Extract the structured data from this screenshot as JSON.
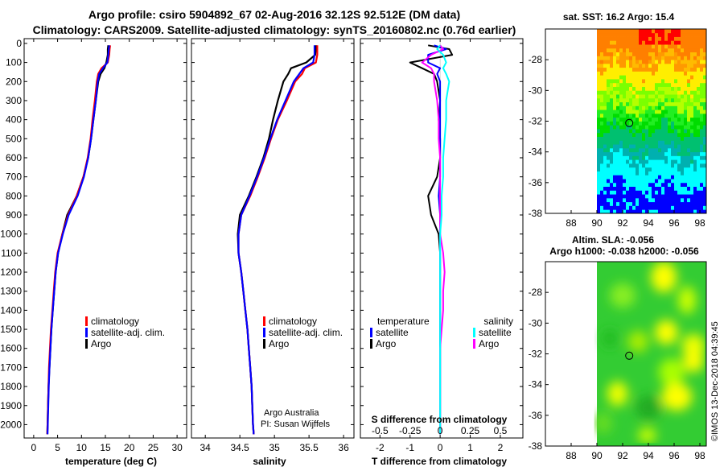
{
  "title_line1": "Argo profile: csiro 5904892_67 02-Aug-2016 32.12S 92.512E (DM data)",
  "title_line2": "Climatology: CARS2009. Satellite-adjusted climatology: synTS_20160802.nc (0.76d earlier)",
  "chart_data": [
    {
      "type": "line",
      "panel": "temperature",
      "xlabel": "temperature (deg C)",
      "ylabel": "",
      "xlim": [
        -2,
        32
      ],
      "ylim": [
        2070,
        -25
      ],
      "x_ticks": [
        0,
        5,
        10,
        15,
        20,
        25,
        30
      ],
      "y_ticks": [
        0,
        100,
        200,
        300,
        400,
        500,
        600,
        700,
        800,
        900,
        1000,
        1100,
        1200,
        1300,
        1400,
        1500,
        1600,
        1700,
        1800,
        1900,
        2000
      ],
      "depth": [
        10,
        30,
        60,
        100,
        130,
        160,
        200,
        300,
        400,
        500,
        600,
        700,
        800,
        900,
        1000,
        1100,
        1200,
        1300,
        1400,
        1500,
        1600,
        1700,
        1800,
        1900,
        2000,
        2050
      ],
      "series": [
        {
          "name": "climatology",
          "color": "#ff0000",
          "values": [
            16.0,
            15.9,
            15.8,
            15.5,
            14.2,
            13.5,
            13.2,
            12.8,
            12.3,
            11.9,
            11.3,
            10.4,
            9.0,
            7.2,
            6.0,
            5.0,
            4.5,
            4.2,
            3.9,
            3.6,
            3.4,
            3.2,
            3.1,
            3.0,
            2.9,
            2.85
          ]
        },
        {
          "name": "satellite-adj. clim.",
          "color": "#0000ff",
          "values": [
            15.8,
            15.7,
            15.6,
            15.4,
            14.5,
            13.7,
            13.4,
            13.0,
            12.5,
            12.0,
            11.4,
            10.5,
            9.2,
            7.3,
            6.1,
            5.1,
            4.6,
            4.3,
            4.0,
            3.7,
            3.5,
            3.3,
            3.15,
            3.05,
            2.95,
            2.9
          ]
        },
        {
          "name": "Argo",
          "color": "#000000",
          "values": [
            15.6,
            15.5,
            15.5,
            15.2,
            14.8,
            14.0,
            13.5,
            13.0,
            12.5,
            12.0,
            11.4,
            10.4,
            9.0,
            7.0,
            6.0,
            5.1,
            4.6,
            4.3,
            4.0,
            3.7,
            3.5,
            3.3,
            3.1,
            3.0,
            2.9,
            2.85
          ]
        }
      ]
    },
    {
      "type": "line",
      "panel": "salinity",
      "xlabel": "salinity",
      "xlim": [
        33.8,
        36.15
      ],
      "ylim": [
        2070,
        -25
      ],
      "x_ticks": [
        34,
        34.5,
        35,
        35.5,
        36
      ],
      "series": [
        {
          "name": "climatology",
          "color": "#ff0000",
          "values": [
            35.62,
            35.62,
            35.62,
            35.6,
            35.44,
            35.4,
            35.3,
            35.18,
            35.05,
            34.95,
            34.86,
            34.76,
            34.65,
            34.52,
            34.48,
            34.48,
            34.52,
            34.55,
            34.58,
            34.61,
            34.63,
            34.65,
            34.67,
            34.68,
            34.69,
            34.7
          ]
        },
        {
          "name": "satellite-adj. clim.",
          "color": "#0000ff",
          "values": [
            35.58,
            35.58,
            35.58,
            35.56,
            35.42,
            35.36,
            35.28,
            35.16,
            35.04,
            34.94,
            34.85,
            34.75,
            34.64,
            34.52,
            34.48,
            34.48,
            34.52,
            34.55,
            34.58,
            34.61,
            34.63,
            34.65,
            34.67,
            34.68,
            34.69,
            34.7
          ]
        },
        {
          "name": "Argo",
          "color": "#000000",
          "values": [
            35.6,
            35.6,
            35.59,
            35.46,
            35.24,
            35.2,
            35.13,
            35.05,
            34.98,
            34.92,
            34.84,
            34.74,
            34.63,
            34.5,
            34.47,
            34.48,
            34.52,
            34.55,
            34.58,
            34.61,
            34.63,
            34.65,
            34.67,
            34.68,
            34.69,
            34.7
          ]
        }
      ],
      "notes": [
        "Argo Australia",
        "PI: Susan Wijffels"
      ]
    },
    {
      "type": "line",
      "panel": "difference",
      "xlabel": "T difference from climatology",
      "xlabel_top": "S difference from climatology",
      "xlim": [
        -2.65,
        2.75
      ],
      "ylim": [
        2070,
        -25
      ],
      "x_ticks": [
        -2,
        -1,
        0,
        1,
        2
      ],
      "top_ticks": [
        "-0.5",
        "-0.25",
        "0",
        "0.25",
        "0.5"
      ],
      "top_ticks_t_units": [
        -2.0,
        -1.0,
        0.0,
        1.0,
        2.0
      ],
      "legend_temperature": "temperature",
      "legend_salinity": "salinity",
      "series": [
        {
          "name": "satellite",
          "group": "temperature",
          "color": "#0000ff",
          "values": [
            -0.2,
            0.2,
            -0.4,
            -0.4,
            0.0,
            -0.1,
            0.0,
            0.0,
            0.0,
            0.0,
            0.0,
            0.0,
            -0.05,
            0.0,
            0.0,
            0.0,
            0.0,
            0.0,
            0.0,
            0.0,
            0.0,
            0.0,
            0.0,
            0.0,
            0.0,
            0.0
          ]
        },
        {
          "name": "Argo",
          "group": "temperature",
          "color": "#000000",
          "values": [
            -0.4,
            0.3,
            0.4,
            -1.0,
            -0.6,
            -0.2,
            -0.1,
            0.0,
            -0.05,
            0.0,
            0.0,
            -0.1,
            -0.4,
            -0.3,
            -0.05,
            0.0,
            0.0,
            0.0,
            0.0,
            0.0,
            0.0,
            0.0,
            0.0,
            0.0,
            0.0,
            0.0
          ]
        },
        {
          "name": "satellite",
          "group": "salinity",
          "color": "#00ffff",
          "values": [
            0.0,
            -0.1,
            0.1,
            0.2,
            0.1,
            0.2,
            0.3,
            0.2,
            0.2,
            0.15,
            0.1,
            0.1,
            0.05,
            0.05,
            0.0,
            0.0,
            0.0,
            0.0,
            0.0,
            0.0,
            0.0,
            0.0,
            0.0,
            0.0,
            0.0,
            0.0
          ]
        },
        {
          "name": "Argo",
          "group": "salinity",
          "color": "#ff00ff",
          "values": [
            0.0,
            0.1,
            -0.3,
            -0.6,
            -0.3,
            -0.2,
            -0.2,
            -0.1,
            -0.05,
            -0.05,
            0.0,
            0.0,
            0.0,
            0.0,
            0.0,
            0.1,
            0.15,
            0.1,
            0.1,
            0.05,
            0.0,
            0.0,
            0.0,
            0.0,
            0.0,
            0.0
          ]
        }
      ]
    },
    {
      "type": "heatmap",
      "panel": "sst_map",
      "title": "sat. SST: 16.2 Argo: 15.4",
      "xlim": [
        86,
        98.5
      ],
      "ylim": [
        -38,
        -26
      ],
      "x_ticks": [
        88,
        90,
        92,
        94,
        96,
        98
      ],
      "y_ticks": [
        -28,
        -30,
        -32,
        -34,
        -36,
        -38
      ],
      "argo_position": [
        92.512,
        -32.12
      ]
    },
    {
      "type": "heatmap",
      "panel": "sla_map",
      "title": "Altim. SLA: -0.056",
      "subtitle": "Argo h1000: -0.038 h2000: -0.056",
      "xlim": [
        86,
        98.5
      ],
      "ylim": [
        -38,
        -26
      ],
      "x_ticks": [
        88,
        90,
        92,
        94,
        96,
        98
      ],
      "y_ticks": [
        -28,
        -30,
        -32,
        -34,
        -36,
        -38
      ],
      "argo_position": [
        92.512,
        -32.12
      ]
    }
  ],
  "legend_labels": [
    "climatology",
    "satellite-adj. clim.",
    "Argo"
  ],
  "watermark": "©IMOS 13-Dec-2018 04:39:45"
}
